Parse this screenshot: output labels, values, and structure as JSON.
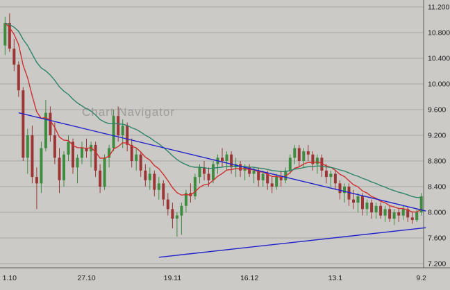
{
  "window": {
    "background": "#cbcac6"
  },
  "chart_data": {
    "type": "candlestick",
    "title": "",
    "watermark": "Chart Navigator",
    "ylim": [
      7.2,
      11.2
    ],
    "grid": true,
    "y_ticks": [
      "11.200",
      "10.800",
      "10.400",
      "10.000",
      "9.600",
      "9.200",
      "8.800",
      "8.400",
      "8.000",
      "7.600",
      "7.200"
    ],
    "x_axis": [
      {
        "index": 1,
        "label": "1.10"
      },
      {
        "index": 18,
        "label": "27.10"
      },
      {
        "index": 37,
        "label": "19.11"
      },
      {
        "index": 54,
        "label": "16.12"
      },
      {
        "index": 73,
        "label": "13.1"
      },
      {
        "index": 92,
        "label": "9.2"
      }
    ],
    "colors": {
      "up": "#3f8b3f",
      "down": "#9c3636",
      "ma_fast": "#cf2f2f",
      "ma_slow": "#2e8468",
      "trend": "#2222cc",
      "grid": "#a6a6a6",
      "axis_text": "#1c1c1c",
      "frame": "#5a5a5a"
    },
    "overlays": [
      {
        "name": "ma-fast",
        "type": "ema",
        "period": 10,
        "color_key": "ma_fast"
      },
      {
        "name": "ma-slow",
        "type": "ema",
        "period": 30,
        "color_key": "ma_slow"
      }
    ],
    "trendlines": [
      {
        "name": "descending-resistance",
        "from": [
          3,
          9.55
        ],
        "to": [
          93,
          8.02
        ]
      },
      {
        "name": "ascending-support",
        "from": [
          34,
          7.3
        ],
        "to": [
          93,
          7.76
        ]
      }
    ],
    "candles": [
      [
        10.6,
        11.05,
        10.45,
        10.95
      ],
      [
        10.95,
        11.1,
        10.5,
        10.55
      ],
      [
        10.55,
        10.7,
        10.2,
        10.3
      ],
      [
        10.3,
        10.35,
        9.8,
        9.9
      ],
      [
        9.9,
        9.95,
        8.8,
        8.85
      ],
      [
        8.85,
        9.3,
        8.6,
        9.2
      ],
      [
        9.2,
        9.35,
        8.45,
        8.55
      ],
      [
        8.55,
        8.7,
        8.05,
        8.45
      ],
      [
        8.45,
        9.1,
        8.3,
        9.0
      ],
      [
        9.0,
        9.75,
        8.95,
        9.55
      ],
      [
        9.55,
        9.65,
        9.1,
        9.2
      ],
      [
        9.2,
        9.4,
        8.75,
        8.85
      ],
      [
        8.85,
        9.0,
        8.3,
        8.5
      ],
      [
        8.5,
        8.95,
        8.4,
        8.9
      ],
      [
        8.9,
        9.2,
        8.8,
        9.1
      ],
      [
        9.1,
        9.15,
        8.6,
        8.7
      ],
      [
        8.7,
        8.9,
        8.45,
        8.85
      ],
      [
        8.85,
        9.1,
        8.75,
        9.0
      ],
      [
        9.0,
        9.15,
        8.85,
        8.95
      ],
      [
        8.95,
        9.1,
        8.7,
        9.05
      ],
      [
        9.05,
        9.1,
        8.55,
        8.65
      ],
      [
        8.65,
        8.75,
        8.3,
        8.4
      ],
      [
        8.4,
        8.9,
        8.35,
        8.85
      ],
      [
        8.85,
        9.05,
        8.7,
        9.0
      ],
      [
        9.0,
        9.6,
        8.95,
        9.5
      ],
      [
        9.5,
        9.65,
        9.1,
        9.2
      ],
      [
        9.2,
        9.45,
        9.0,
        9.35
      ],
      [
        9.35,
        9.4,
        8.95,
        9.05
      ],
      [
        9.05,
        9.15,
        8.7,
        8.8
      ],
      [
        8.8,
        9.0,
        8.65,
        8.9
      ],
      [
        8.9,
        8.95,
        8.55,
        8.65
      ],
      [
        8.65,
        8.75,
        8.4,
        8.5
      ],
      [
        8.5,
        8.7,
        8.35,
        8.6
      ],
      [
        8.6,
        8.65,
        8.25,
        8.35
      ],
      [
        8.35,
        8.55,
        8.2,
        8.45
      ],
      [
        8.45,
        8.5,
        8.1,
        8.2
      ],
      [
        8.2,
        8.3,
        7.95,
        8.05
      ],
      [
        8.05,
        8.15,
        7.75,
        7.9
      ],
      [
        7.9,
        8.0,
        7.62,
        7.95
      ],
      [
        7.95,
        8.15,
        7.65,
        8.1
      ],
      [
        8.1,
        8.35,
        8.0,
        8.3
      ],
      [
        8.3,
        8.45,
        8.15,
        8.25
      ],
      [
        8.25,
        8.6,
        8.2,
        8.55
      ],
      [
        8.55,
        8.75,
        8.45,
        8.7
      ],
      [
        8.7,
        8.8,
        8.5,
        8.6
      ],
      [
        8.6,
        8.7,
        8.4,
        8.5
      ],
      [
        8.5,
        8.8,
        8.45,
        8.75
      ],
      [
        8.75,
        8.9,
        8.6,
        8.85
      ],
      [
        8.85,
        9.0,
        8.7,
        8.8
      ],
      [
        8.8,
        8.95,
        8.65,
        8.9
      ],
      [
        8.9,
        8.95,
        8.6,
        8.7
      ],
      [
        8.7,
        8.85,
        8.55,
        8.75
      ],
      [
        8.75,
        8.8,
        8.55,
        8.65
      ],
      [
        8.65,
        8.75,
        8.5,
        8.7
      ],
      [
        8.7,
        8.75,
        8.55,
        8.6
      ],
      [
        8.6,
        8.7,
        8.45,
        8.65
      ],
      [
        8.65,
        8.7,
        8.4,
        8.5
      ],
      [
        8.5,
        8.65,
        8.4,
        8.6
      ],
      [
        8.6,
        8.65,
        8.35,
        8.45
      ],
      [
        8.45,
        8.55,
        8.3,
        8.4
      ],
      [
        8.4,
        8.6,
        8.35,
        8.55
      ],
      [
        8.55,
        8.65,
        8.4,
        8.5
      ],
      [
        8.5,
        8.7,
        8.45,
        8.65
      ],
      [
        8.65,
        8.9,
        8.6,
        8.85
      ],
      [
        8.85,
        9.05,
        8.75,
        9.0
      ],
      [
        9.0,
        9.05,
        8.7,
        8.8
      ],
      [
        8.8,
        9.0,
        8.7,
        8.95
      ],
      [
        8.95,
        9.05,
        8.8,
        8.9
      ],
      [
        8.9,
        8.95,
        8.65,
        8.75
      ],
      [
        8.75,
        8.9,
        8.6,
        8.85
      ],
      [
        8.85,
        8.9,
        8.55,
        8.65
      ],
      [
        8.65,
        8.75,
        8.45,
        8.55
      ],
      [
        8.55,
        8.65,
        8.4,
        8.6
      ],
      [
        8.6,
        8.65,
        8.35,
        8.45
      ],
      [
        8.45,
        8.5,
        8.2,
        8.3
      ],
      [
        8.3,
        8.45,
        8.15,
        8.4
      ],
      [
        8.4,
        8.45,
        8.1,
        8.2
      ],
      [
        8.2,
        8.35,
        8.05,
        8.15
      ],
      [
        8.15,
        8.3,
        8.0,
        8.25
      ],
      [
        8.25,
        8.3,
        7.95,
        8.05
      ],
      [
        8.05,
        8.2,
        7.95,
        8.15
      ],
      [
        8.15,
        8.2,
        7.9,
        8.0
      ],
      [
        8.0,
        8.15,
        7.9,
        8.1
      ],
      [
        8.1,
        8.15,
        7.9,
        7.95
      ],
      [
        7.95,
        8.1,
        7.85,
        8.05
      ],
      [
        8.05,
        8.1,
        7.85,
        7.9
      ],
      [
        7.9,
        8.05,
        7.8,
        8.0
      ],
      [
        8.0,
        8.05,
        7.85,
        7.95
      ],
      [
        7.95,
        8.1,
        7.88,
        8.05
      ],
      [
        8.05,
        8.08,
        7.85,
        7.92
      ],
      [
        7.92,
        8.0,
        7.82,
        7.88
      ],
      [
        7.88,
        8.05,
        7.85,
        8.0
      ],
      [
        8.0,
        8.3,
        7.95,
        8.25
      ]
    ]
  }
}
